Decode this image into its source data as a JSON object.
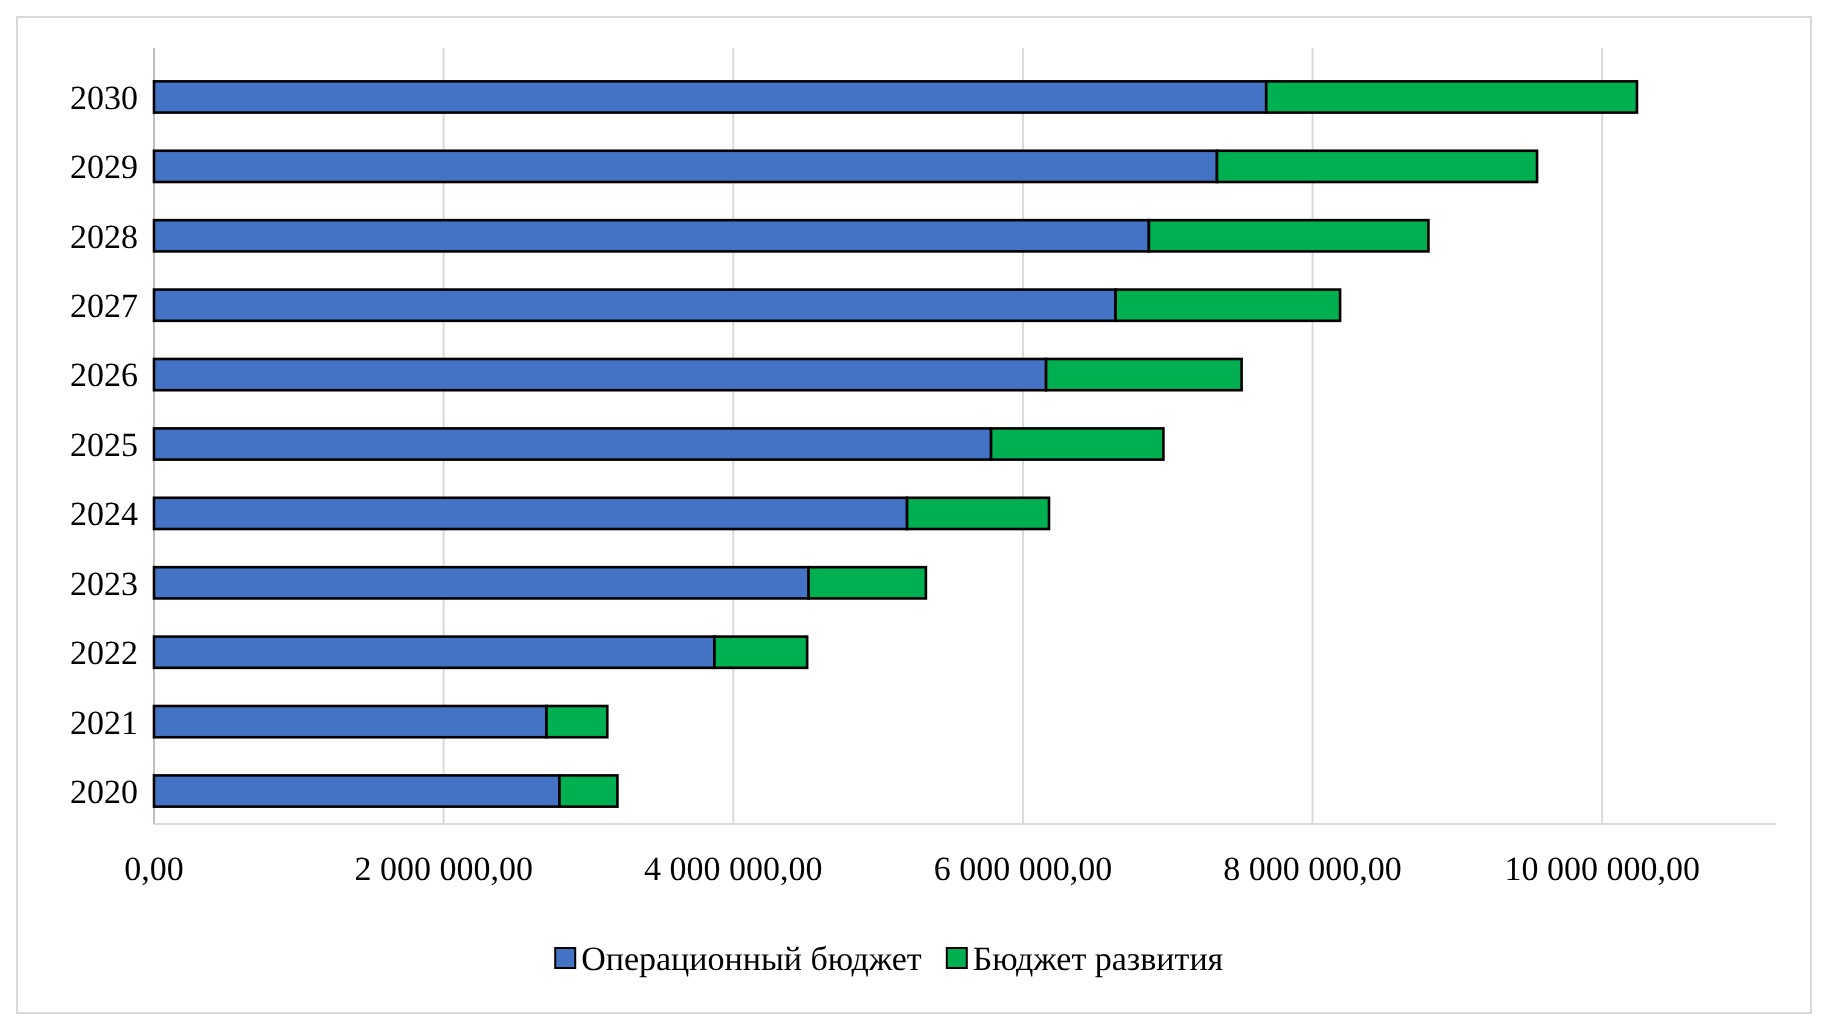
{
  "chart_data": {
    "type": "bar",
    "orientation": "horizontal",
    "stacked": true,
    "categories": [
      "2030",
      "2029",
      "2028",
      "2027",
      "2026",
      "2025",
      "2024",
      "2023",
      "2022",
      "2021",
      "2020"
    ],
    "series": [
      {
        "name": "Операционный бюджет",
        "color": "#4472c4",
        "values": [
          7680000,
          7340000,
          6870000,
          6640000,
          6160000,
          5780000,
          5200000,
          4520000,
          3870000,
          2710000,
          2800000
        ]
      },
      {
        "name": "Бюджет развития",
        "color": "#00b050",
        "values": [
          2560000,
          2210000,
          1930000,
          1550000,
          1350000,
          1190000,
          980000,
          810000,
          640000,
          420000,
          400000
        ]
      }
    ],
    "xlim": [
      0,
      11200000
    ],
    "xticks": [
      {
        "value": 0,
        "label": "0,00"
      },
      {
        "value": 2000000,
        "label": "2 000 000,00"
      },
      {
        "value": 4000000,
        "label": "4 000 000,00"
      },
      {
        "value": 6000000,
        "label": "6 000 000,00"
      },
      {
        "value": 8000000,
        "label": "8 000 000,00"
      },
      {
        "value": 10000000,
        "label": "10 000 000,00"
      }
    ],
    "grid": "x",
    "legend": "bottom"
  }
}
